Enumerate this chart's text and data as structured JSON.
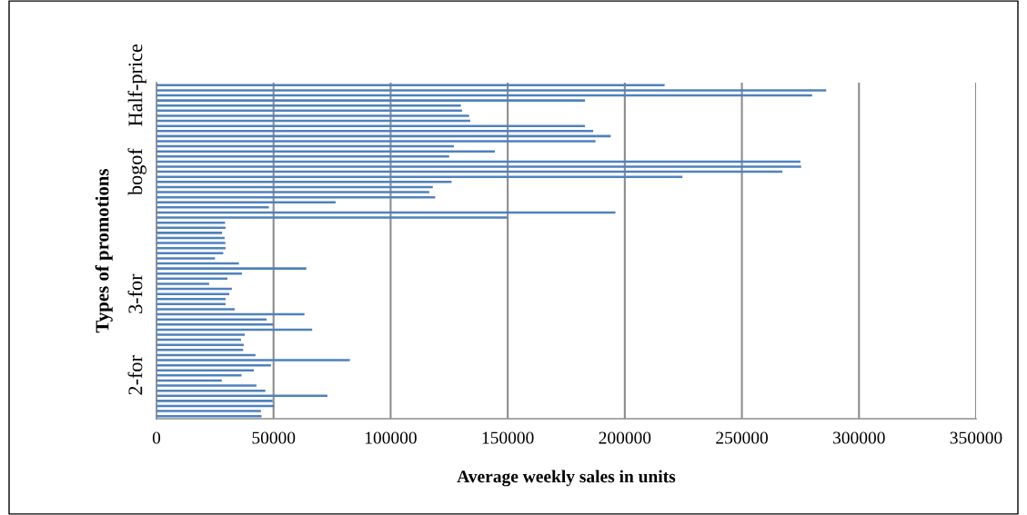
{
  "chart_data": {
    "type": "bar",
    "orientation": "horizontal",
    "xlabel": "Average weekly sales in units",
    "ylabel": "Types of promotions",
    "categories": [
      "Half-price",
      null,
      null,
      null,
      null,
      null,
      null,
      null,
      null,
      null,
      null,
      null,
      null,
      null,
      null,
      null,
      null,
      "bogof",
      null,
      null,
      null,
      null,
      null,
      null,
      null,
      null,
      null,
      null,
      null,
      null,
      null,
      null,
      null,
      null,
      null,
      null,
      null,
      null,
      null,
      null,
      null,
      "3-for",
      null,
      null,
      null,
      null,
      null,
      null,
      null,
      null,
      null,
      null,
      null,
      null,
      null,
      null,
      null,
      "2-for",
      null,
      null,
      null,
      null,
      null,
      null,
      null,
      null
    ],
    "values": [
      217000,
      286000,
      280000,
      183000,
      130000,
      130500,
      133500,
      134000,
      183000,
      186500,
      194000,
      187500,
      127000,
      144500,
      125000,
      275000,
      275300,
      267300,
      224600,
      126000,
      118000,
      116500,
      119000,
      76500,
      48000,
      196000,
      150000,
      29300,
      29500,
      28000,
      29100,
      29400,
      29500,
      28500,
      25000,
      35200,
      64000,
      36500,
      30300,
      22500,
      32200,
      31100,
      29500,
      29500,
      33400,
      63200,
      47000,
      50000,
      66500,
      37700,
      36100,
      37300,
      37000,
      42300,
      82600,
      48900,
      41600,
      36300,
      27900,
      42700,
      46500,
      73000,
      49600,
      50300,
      44600,
      44900
    ],
    "color": "#4f81bd",
    "xlim": [
      0,
      350000
    ],
    "xticks": [
      0,
      50000,
      100000,
      150000,
      200000,
      250000,
      300000,
      350000
    ],
    "grid": "x",
    "legend": false
  }
}
